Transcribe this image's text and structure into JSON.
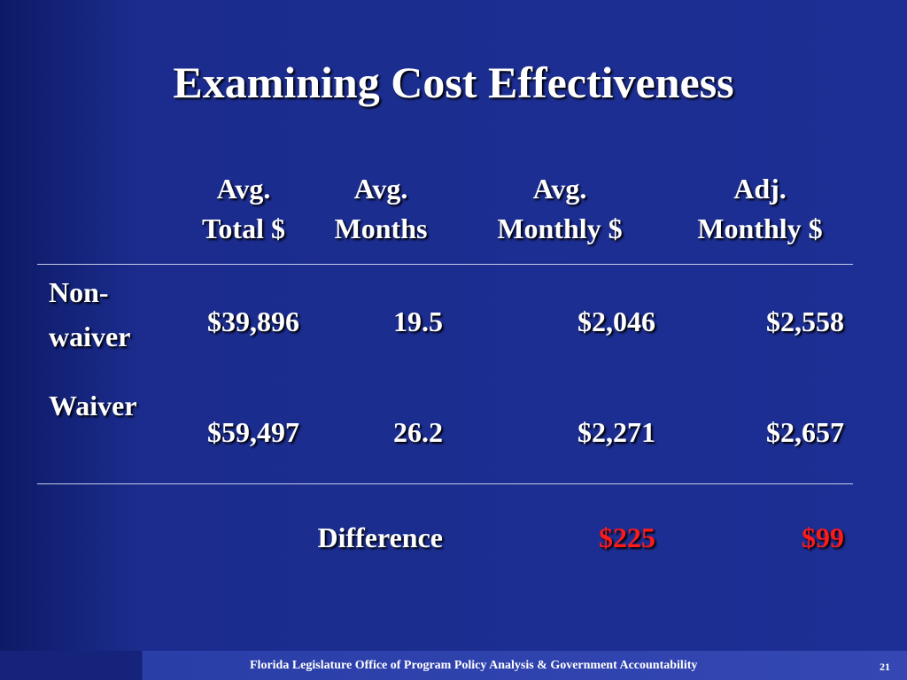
{
  "title": "Examining Cost Effectiveness",
  "table": {
    "headers": [
      [
        "Avg.",
        "Total $"
      ],
      [
        "Avg.",
        "Months"
      ],
      [
        "Avg.",
        "Monthly $"
      ],
      [
        "Adj.",
        "Monthly $"
      ]
    ],
    "rows": [
      {
        "label": [
          "Non-",
          "waiver"
        ],
        "cells": [
          "$39,896",
          "19.5",
          "$2,046",
          "$2,558"
        ]
      },
      {
        "label": [
          "Waiver"
        ],
        "cells": [
          "$59,497",
          "26.2",
          "$2,271",
          "$2,657"
        ]
      }
    ],
    "difference": {
      "label": "Difference",
      "cells": [
        "$225",
        "$99"
      ]
    }
  },
  "footer": {
    "text": "Florida Legislature Office of Program Policy Analysis & Government Accountability",
    "page": "21"
  }
}
